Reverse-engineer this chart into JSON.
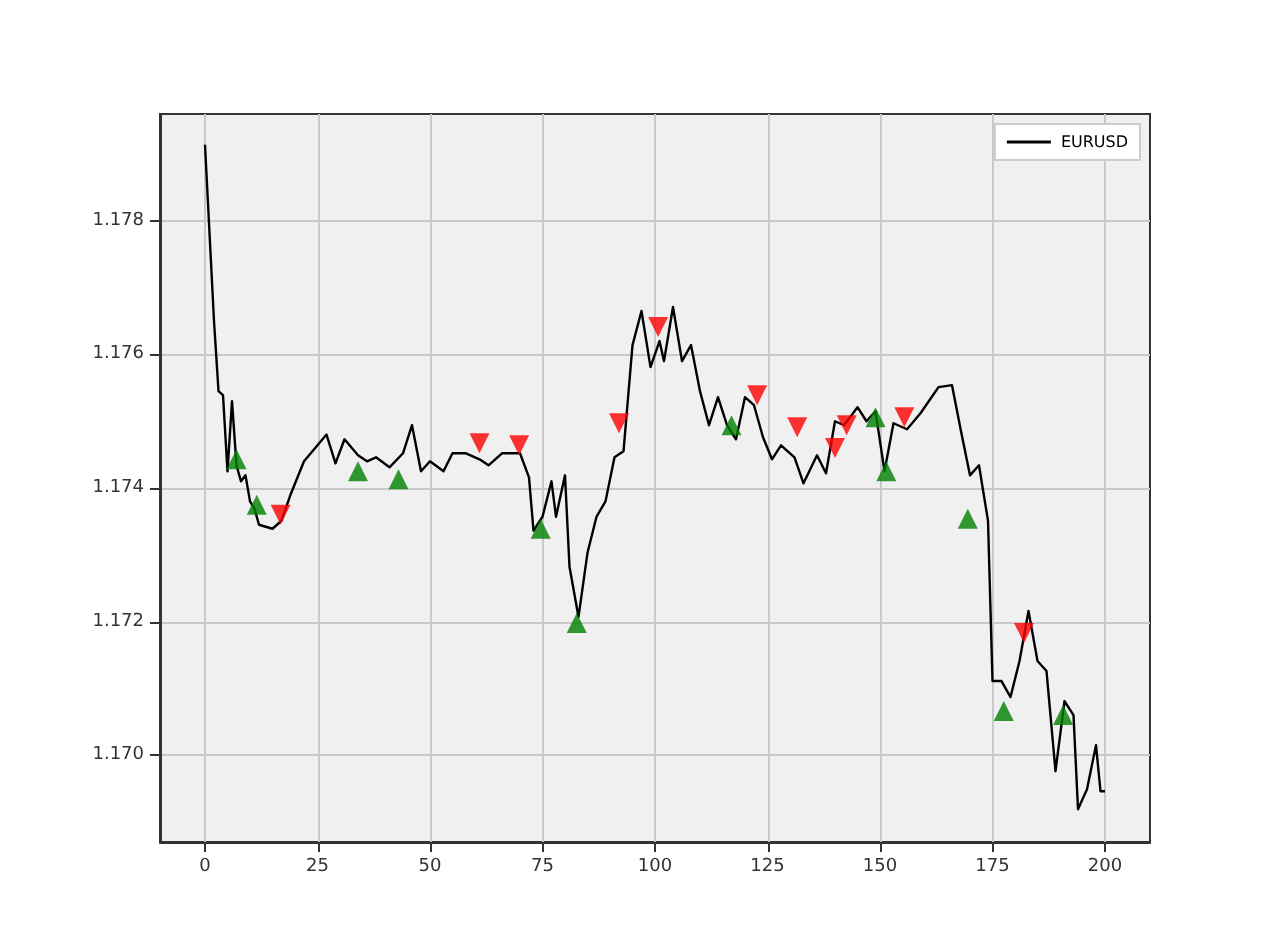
{
  "chart_data": {
    "type": "line",
    "xlim": [
      -10,
      210
    ],
    "xticks": [
      0,
      25,
      50,
      75,
      100,
      125,
      150,
      175,
      200
    ],
    "ylim": [
      1.1687,
      1.1796
    ],
    "yticks": [
      {
        "value": 1.17,
        "label": "1.170"
      },
      {
        "value": 1.172,
        "label": "1.172"
      },
      {
        "value": 1.174,
        "label": "1.174"
      },
      {
        "value": 1.176,
        "label": "1.176"
      },
      {
        "value": 1.178,
        "label": "1.178"
      }
    ],
    "grid": true,
    "legend": "top right",
    "marker": "none",
    "series": [
      {
        "name": "EURUSD",
        "color": "#000000",
        "x": [
          0,
          2,
          3,
          4,
          5,
          6,
          7,
          8,
          9,
          10,
          11,
          12,
          15,
          17,
          19,
          22,
          25,
          27,
          29,
          31,
          34,
          36,
          38,
          41,
          44,
          46,
          48,
          50,
          53,
          55,
          58,
          61,
          63,
          66,
          70,
          72,
          73,
          75,
          77,
          78,
          80,
          81,
          83,
          85,
          87,
          89,
          91,
          93,
          95,
          97,
          99,
          101,
          102,
          104,
          106,
          108,
          110,
          112,
          114,
          116,
          118,
          120,
          122,
          124,
          126,
          128,
          131,
          133,
          136,
          138,
          140,
          142,
          145,
          147,
          149,
          151,
          153,
          156,
          159,
          163,
          166,
          168,
          170,
          172,
          174,
          175,
          177,
          179,
          181,
          183,
          185,
          187,
          189,
          191,
          193,
          194,
          196,
          198,
          199,
          200
        ],
        "values": [
          1.17914,
          1.1765,
          1.17545,
          1.17539,
          1.17425,
          1.1753,
          1.17434,
          1.1741,
          1.17419,
          1.1738,
          1.17369,
          1.17345,
          1.17339,
          1.17351,
          1.1739,
          1.1744,
          1.17464,
          1.1748,
          1.17437,
          1.17473,
          1.17449,
          1.1744,
          1.17446,
          1.17431,
          1.17452,
          1.17494,
          1.17425,
          1.1744,
          1.17425,
          1.17452,
          1.17452,
          1.17443,
          1.17434,
          1.17452,
          1.17452,
          1.17416,
          1.17336,
          1.17357,
          1.1741,
          1.17357,
          1.17419,
          1.17282,
          1.17207,
          1.17303,
          1.17357,
          1.1738,
          1.17446,
          1.17455,
          1.17614,
          1.17665,
          1.17581,
          1.1762,
          1.1759,
          1.17671,
          1.1759,
          1.17614,
          1.17545,
          1.17494,
          1.17536,
          1.17494,
          1.17473,
          1.17536,
          1.17524,
          1.17476,
          1.17443,
          1.17464,
          1.17446,
          1.17407,
          1.17449,
          1.17422,
          1.175,
          1.17494,
          1.17521,
          1.175,
          1.17515,
          1.17425,
          1.17497,
          1.17488,
          1.17512,
          1.17551,
          1.17554,
          1.17485,
          1.17419,
          1.17434,
          1.17351,
          1.17111,
          1.17111,
          1.17087,
          1.17141,
          1.17216,
          1.17141,
          1.17126,
          1.16976,
          1.17081,
          1.1706,
          1.16919,
          1.16949,
          1.17015,
          1.16946,
          1.16946
        ]
      },
      {
        "type": "scatter",
        "marker": "triangle",
        "color": "#008000",
        "x": [
          7,
          11.5,
          34,
          43,
          74.6,
          82.6,
          117,
          149,
          151.4,
          169.5,
          177.5,
          190.7
        ],
        "values": [
          1.17443,
          1.17375,
          1.17425,
          1.17413,
          1.17339,
          1.17198,
          1.17494,
          1.17506,
          1.17425,
          1.17354,
          1.17066,
          1.1706
        ]
      },
      {
        "type": "scatter",
        "marker": "triangle_down",
        "color": "#ff0000",
        "x": [
          16.8,
          61,
          69.8,
          92,
          100.7,
          122.7,
          131.6,
          140,
          142.6,
          155.4,
          182
        ],
        "values": [
          1.1736,
          1.17467,
          1.17464,
          1.17497,
          1.17641,
          1.17539,
          1.17491,
          1.1746,
          1.17494,
          1.17506,
          1.17183
        ]
      }
    ]
  }
}
